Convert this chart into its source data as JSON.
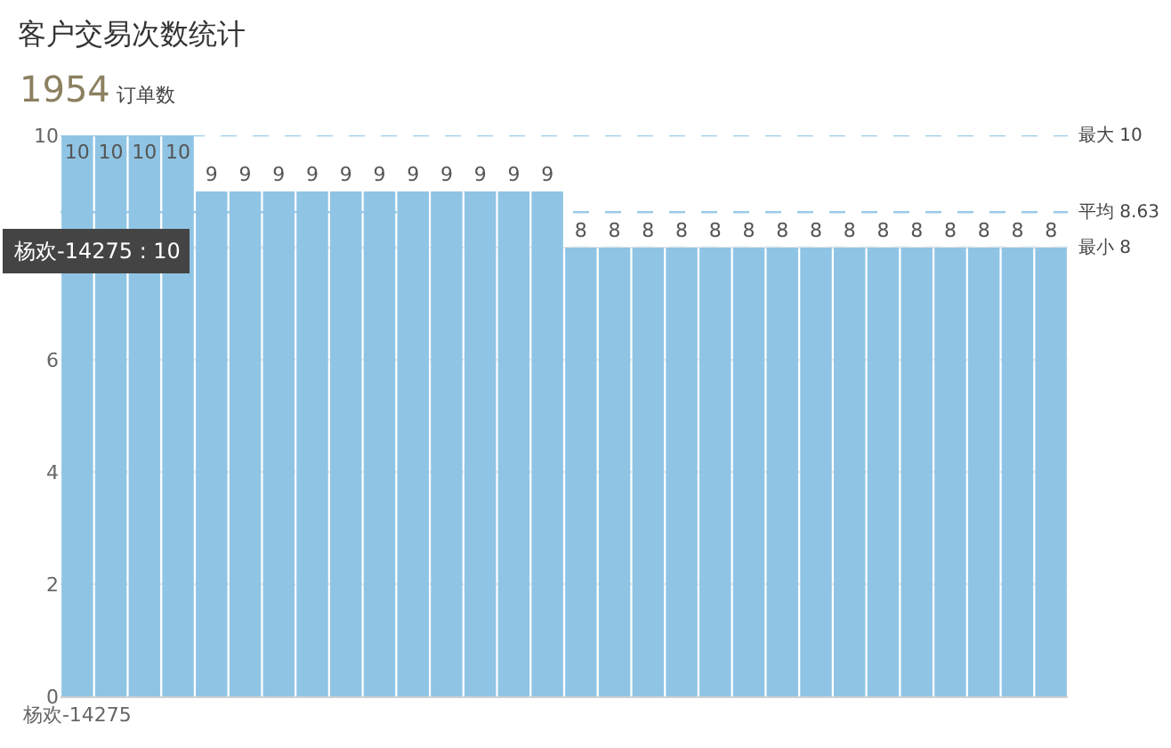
{
  "chart_data": {
    "type": "bar",
    "title": "客户交易次数统计",
    "subtitle": "1954 订单数",
    "categories": [
      "杨欢-14275",
      null,
      null,
      null,
      null,
      null,
      null,
      null,
      null,
      null,
      null,
      null,
      null,
      null,
      null,
      null,
      null,
      null,
      null,
      null,
      null,
      null,
      null,
      null,
      null,
      null,
      null,
      null,
      null,
      null
    ],
    "values": [
      10,
      10,
      10,
      10,
      9,
      9,
      9,
      9,
      9,
      9,
      9,
      9,
      9,
      9,
      9,
      8,
      8,
      8,
      8,
      8,
      8,
      8,
      8,
      8,
      8,
      8,
      8,
      8,
      8,
      8
    ],
    "color": "#90c4e4",
    "ylim": [
      0,
      10
    ],
    "yticks": [
      0,
      2,
      4,
      6,
      {
        "value": 8,
        "label": null
      },
      10
    ],
    "grid": "y",
    "data_labels": true,
    "ref_lines": [
      {
        "axis": "y",
        "value": 10,
        "label": "最大 10",
        "color": "#9ccbe8",
        "line_style": "dashed"
      },
      {
        "axis": "y",
        "value": 8.63,
        "label": "平均 8.63",
        "color": "#9ccbe8",
        "line_style": "dashed"
      },
      {
        "axis": "y",
        "value": 8,
        "label": "最小 8",
        "color": "#9ccbe8",
        "line_style": "dashed"
      }
    ],
    "annotations": [
      "杨欢-14275 : 10"
    ]
  }
}
